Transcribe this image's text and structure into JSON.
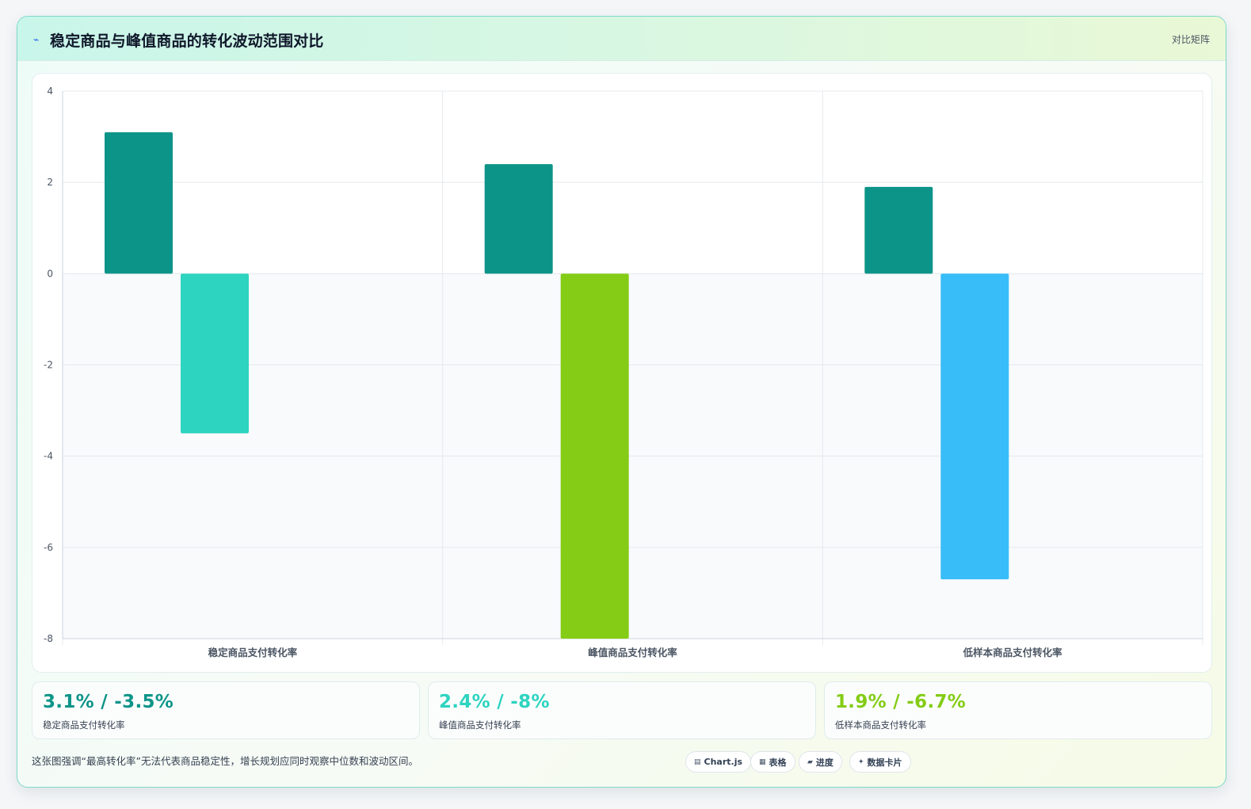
{
  "header": {
    "icon": "lightning-icon",
    "title": "稳定商品与峰值商品的转化波动范围对比",
    "tag": "对比矩阵"
  },
  "chart_data": {
    "type": "bar",
    "categories": [
      "稳定商品支付转化率",
      "峰值商品支付转化率",
      "低样本商品支付转化率"
    ],
    "series": [
      {
        "values": [
          3.1,
          2.4,
          1.9
        ],
        "colors": [
          "#0d9488",
          "#0d9488",
          "#0d9488"
        ]
      },
      {
        "values": [
          -3.5,
          -8,
          -6.7
        ],
        "colors": [
          "#2dd4bf",
          "#84cc16",
          "#38bdf8"
        ]
      }
    ],
    "ylim": [
      -8,
      4
    ],
    "yticks": [
      4,
      2,
      0,
      -2,
      -4,
      -6,
      -8
    ],
    "grid": true,
    "legend": "none"
  },
  "stats": [
    {
      "value": "3.1% / -3.5%",
      "label": "稳定商品支付转化率",
      "color": "#0d9488"
    },
    {
      "value": "2.4% / -8%",
      "label": "峰值商品支付转化率",
      "color": "#2dd4bf"
    },
    {
      "value": "1.9% / -6.7%",
      "label": "低样本商品支付转化率",
      "color": "#84cc16"
    }
  ],
  "footnote": "这张图强调“最高转化率”无法代表商品稳定性，增长规划应同时观察中位数和波动区间。",
  "chips": [
    {
      "icon": "chart-icon",
      "glyph": "▤",
      "label": "Chart.js"
    },
    {
      "icon": "table-icon",
      "glyph": "▦",
      "label": "表格"
    },
    {
      "icon": "progress-icon",
      "glyph": "▰",
      "label": "进度"
    },
    {
      "icon": "card-icon",
      "glyph": "✦",
      "label": "数据卡片"
    }
  ]
}
